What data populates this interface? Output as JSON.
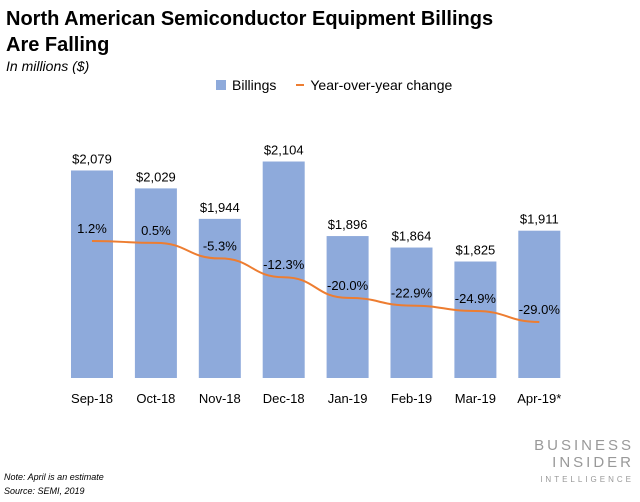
{
  "title": "North American Semiconductor Equipment Billings Are Falling",
  "subtitle": "In millions ($)",
  "note": "Note: April is an estimate",
  "source": "Source: SEMI, 2019",
  "logo": {
    "line1": "BUSINESS",
    "line2": "INSIDER",
    "line3": "INTELLIGENCE"
  },
  "colors": {
    "bar": "#8eaadb",
    "line": "#ed7d31"
  },
  "chart_data": {
    "type": "bar+line",
    "title": "North American Semiconductor Equipment Billings Are Falling",
    "categories": [
      "Sep-18",
      "Oct-18",
      "Nov-18",
      "Dec-18",
      "Jan-19",
      "Feb-19",
      "Mar-19",
      "Apr-19*"
    ],
    "series": [
      {
        "name": "Billings",
        "type": "bar",
        "values": [
          2079,
          2029,
          1944,
          2104,
          1896,
          1864,
          1825,
          1911
        ],
        "labels": [
          "$2,079",
          "$2,029",
          "$1,944",
          "$2,104",
          "$1,896",
          "$1,864",
          "$1,825",
          "$1,911"
        ]
      },
      {
        "name": "Year-over-year change",
        "type": "line",
        "values": [
          1.2,
          0.5,
          -5.3,
          -12.3,
          -20.0,
          -22.9,
          -24.9,
          -29.0
        ],
        "labels": [
          "1.2%",
          "0.5%",
          "-5.3%",
          "-12.3%",
          "-20.0%",
          "-22.9%",
          "-24.9%",
          "-29.0%"
        ]
      }
    ],
    "legend": "top-center",
    "grid": false,
    "ylim_bars": [
      1500,
      2700
    ],
    "ylim_line": [
      -100,
      10
    ]
  }
}
